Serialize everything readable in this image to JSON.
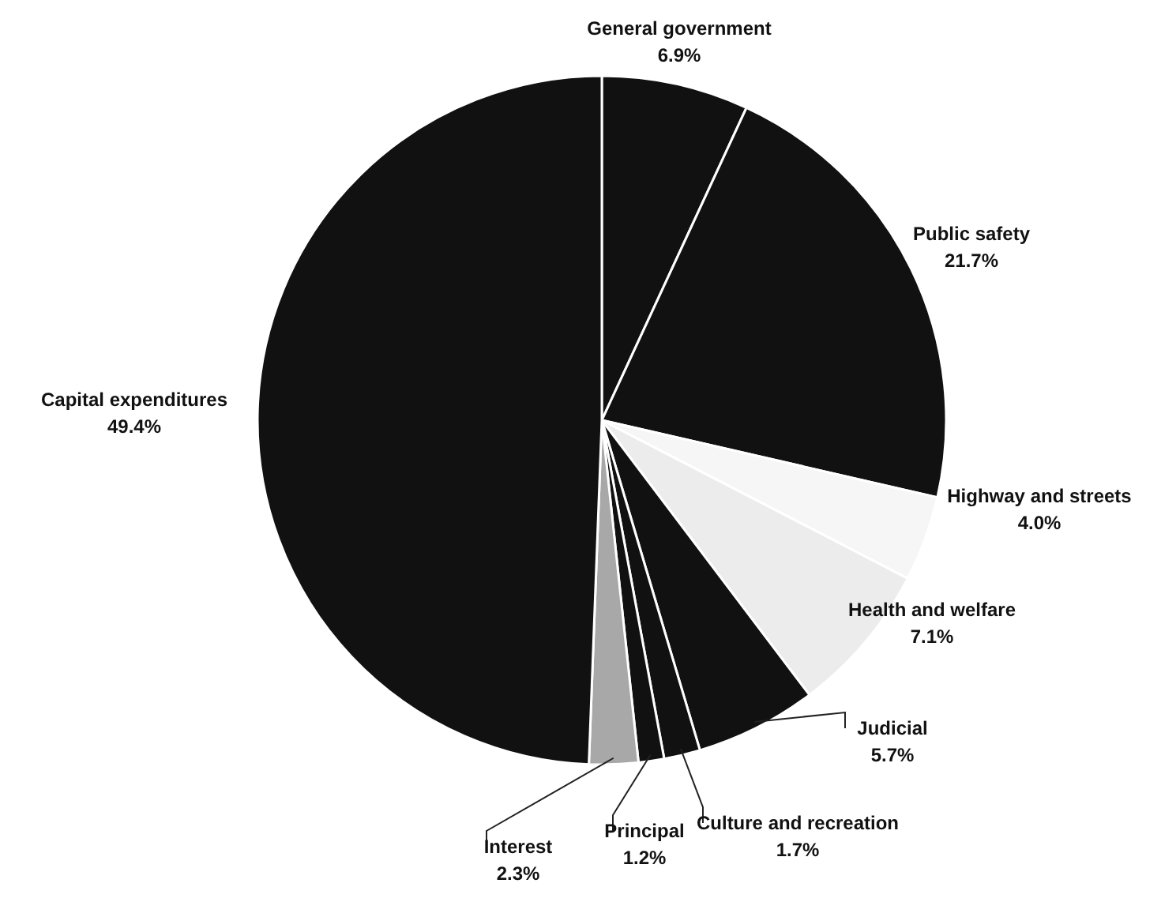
{
  "chart_data": {
    "type": "pie",
    "categories": [
      "General government",
      "Public safety",
      "Highway and streets",
      "Health and welfare",
      "Judicial",
      "Culture and recreation",
      "Principal",
      "Interest",
      "Capital expenditures"
    ],
    "values": [
      6.9,
      21.7,
      4.0,
      7.1,
      5.7,
      1.7,
      1.2,
      2.3,
      49.4
    ],
    "value_labels": [
      "6.9%",
      "21.7%",
      "4.0%",
      "7.1%",
      "5.7%",
      "1.7%",
      "1.2%",
      "2.3%",
      "49.4%"
    ],
    "colors": [
      "#111111",
      "#111111",
      "#f6f6f6",
      "#ececec",
      "#111111",
      "#111111",
      "#111111",
      "#a8a8a8",
      "#111111"
    ]
  }
}
